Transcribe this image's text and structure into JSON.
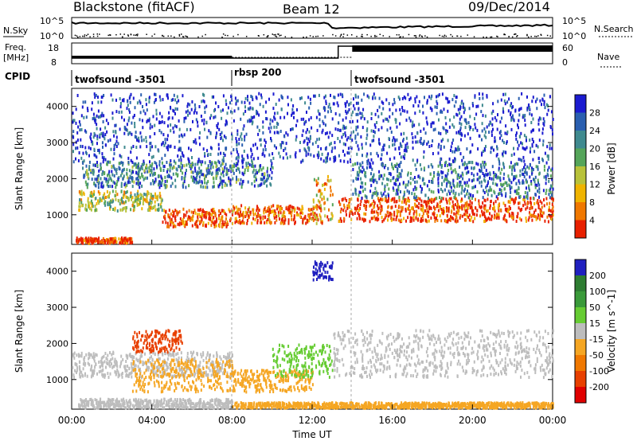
{
  "header": {
    "station": "Blackstone (fitACF)",
    "beam": "Beam 12",
    "date": "09/Dec/2014"
  },
  "status_panels": {
    "nsky_label": "N.Sky",
    "nsearch_label": "N.Search",
    "freq_label_line1": "Freq.",
    "freq_label_line2": "[MHz]",
    "nave_label": "Nave",
    "cpid_label": "CPID",
    "nsky_ticks": [
      "10^5",
      "10^0"
    ],
    "nsearch_ticks": [
      "10^5",
      "10^0"
    ],
    "freq_ticks": [
      "18",
      "8"
    ],
    "nave_ticks": [
      "60",
      "0"
    ],
    "cpid_segments": [
      {
        "start_hr": 0.0,
        "label": "twofsound -3501"
      },
      {
        "start_hr": 8.0,
        "label": "rbsp 200"
      },
      {
        "start_hr": 14.0,
        "label": "twofsound -3501"
      }
    ]
  },
  "chart_data": [
    {
      "type": "heatmap",
      "name": "power",
      "ylabel": "Slant Range [km]",
      "xlim": [
        0,
        24
      ],
      "ylim": [
        180,
        4500
      ],
      "yticks": [
        1000,
        2000,
        3000,
        4000
      ],
      "colorbar": {
        "label": "Power [dB]",
        "ticks": [
          "28",
          "24",
          "20",
          "16",
          "12",
          "8",
          "4"
        ],
        "colors": [
          "#1b1bd0",
          "#2a5fb0",
          "#3f8a8f",
          "#55a55a",
          "#b8c23a",
          "#f0b400",
          "#f07800",
          "#e82000"
        ]
      },
      "bands": [
        {
          "hr": [
            0.3,
            4.5
          ],
          "range": [
            1150,
            1700
          ],
          "level": 0.55
        },
        {
          "hr": [
            0.2,
            3.0
          ],
          "range": [
            250,
            400
          ],
          "level": 0.95
        },
        {
          "hr": [
            4.5,
            8.0
          ],
          "range": [
            700,
            1200
          ],
          "level": 0.9
        },
        {
          "hr": [
            8.0,
            12.5
          ],
          "range": [
            800,
            1300
          ],
          "level": 0.85
        },
        {
          "hr": [
            12.0,
            13.0
          ],
          "range": [
            900,
            2100
          ],
          "level": 0.7
        },
        {
          "hr": [
            13.3,
            24.0
          ],
          "range": [
            850,
            1500
          ],
          "level": 0.9
        },
        {
          "hr": [
            0.5,
            10.0
          ],
          "range": [
            1800,
            2500
          ],
          "level": 0.3
        },
        {
          "hr": [
            14.0,
            24.0
          ],
          "range": [
            1500,
            2500
          ],
          "level": 0.25
        },
        {
          "hr": [
            0.0,
            24.0
          ],
          "range": [
            2500,
            4400
          ],
          "level": 0.1
        }
      ]
    },
    {
      "type": "heatmap",
      "name": "velocity",
      "ylabel": "Slant Range [km]",
      "xlabel": "Time UT",
      "xlim": [
        0,
        24
      ],
      "ylim": [
        180,
        4500
      ],
      "yticks": [
        1000,
        2000,
        3000,
        4000
      ],
      "xticks": [
        "00:00",
        "04:00",
        "08:00",
        "12:00",
        "16:00",
        "20:00",
        "00:00"
      ],
      "colorbar": {
        "label": "Velocity [m s^-1]",
        "ticks": [
          "200",
          "100",
          "50",
          "15",
          "-15",
          "-50",
          "-100",
          "-200"
        ],
        "colors": [
          "#2020c0",
          "#2e7d32",
          "#3a9a3a",
          "#66cc33",
          "#bdbdbd",
          "#f5a623",
          "#f07800",
          "#e84000",
          "#e00000"
        ]
      },
      "bands": [
        {
          "hr": [
            0.0,
            8.0
          ],
          "range": [
            1100,
            1800
          ],
          "color": "#bdbdbd"
        },
        {
          "hr": [
            3.0,
            8.0
          ],
          "range": [
            700,
            1600
          ],
          "color": "#f5a623"
        },
        {
          "hr": [
            3.0,
            5.5
          ],
          "range": [
            1800,
            2400
          ],
          "color": "#e84000"
        },
        {
          "hr": [
            8.0,
            12.0
          ],
          "range": [
            700,
            1300
          ],
          "color": "#f5a623"
        },
        {
          "hr": [
            10.0,
            13.0
          ],
          "range": [
            1100,
            2000
          ],
          "color": "#66cc33"
        },
        {
          "hr": [
            13.0,
            24.0
          ],
          "range": [
            1100,
            2400
          ],
          "color": "#bdbdbd"
        },
        {
          "hr": [
            0.3,
            8.0
          ],
          "range": [
            250,
            500
          ],
          "color": "#bdbdbd"
        },
        {
          "hr": [
            8.0,
            24.0
          ],
          "range": [
            250,
            400
          ],
          "color": "#f5a623"
        },
        {
          "hr": [
            12.0,
            13.0
          ],
          "range": [
            3800,
            4300
          ],
          "color": "#2020c0"
        }
      ]
    }
  ]
}
